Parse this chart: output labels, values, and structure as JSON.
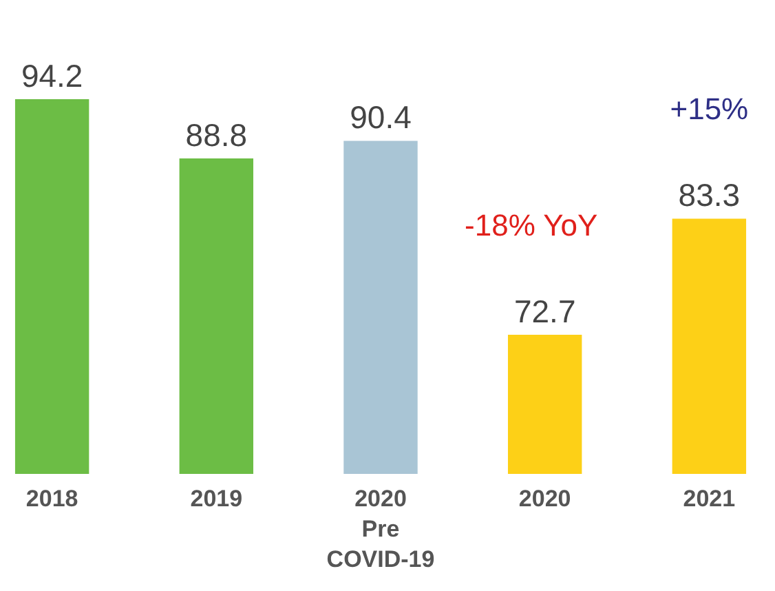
{
  "chart_data": {
    "type": "bar",
    "categories": [
      "2018",
      "2019",
      "2020\nPre\nCOVID-19",
      "2020",
      "2021"
    ],
    "values": [
      94.2,
      88.8,
      90.4,
      72.7,
      83.3
    ],
    "colors": [
      "#6cbd45",
      "#6cbd45",
      "#a9c5d5",
      "#fdd017",
      "#fdd017"
    ],
    "ylim": [
      60,
      94.2
    ],
    "tick_labels": "x",
    "data_labels": true,
    "annotations": [
      "-18% YoY",
      "+15%"
    ]
  }
}
